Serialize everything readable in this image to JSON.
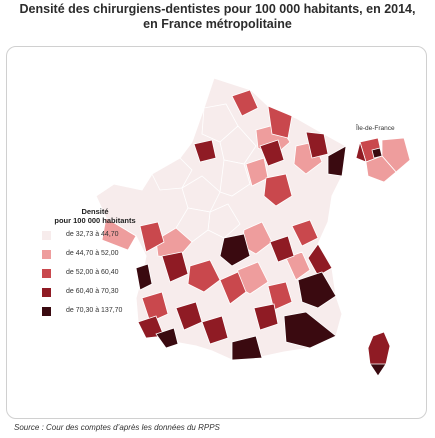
{
  "title_line1": "Densité des chirurgiens-dentistes pour 100 000 habitants, en 2014,",
  "title_line2": "en France métropolitaine",
  "legend": {
    "title_line1": "Densité",
    "title_line2": "pour 100 000 habitants",
    "items": [
      {
        "label": "de 32,73 à 44,70",
        "color": "#f7ecec"
      },
      {
        "label": "de 44,70 à 52,00",
        "color": "#ee9d9d"
      },
      {
        "label": "de 52,00 à 60,40",
        "color": "#c9484d"
      },
      {
        "label": "de 60,40 à 70,30",
        "color": "#8f1b24"
      },
      {
        "label": "de 70,30 à 137,70",
        "color": "#3a0a10"
      }
    ]
  },
  "inset_label": "Île-de-France",
  "source": "Source : Cour des comptes d’après les données du RPPS"
}
